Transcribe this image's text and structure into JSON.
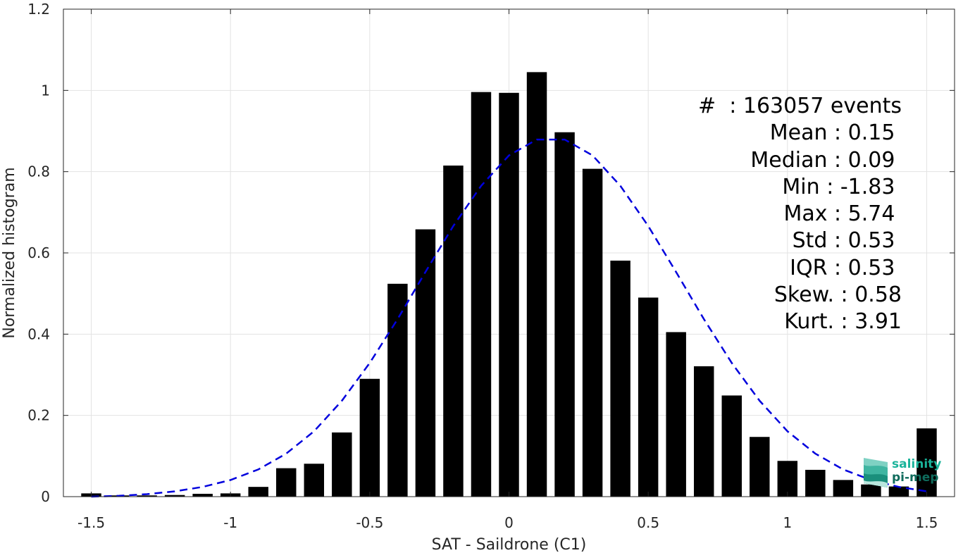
{
  "chart_data": {
    "type": "bar",
    "title": "",
    "xlabel": "SAT - Saildrone (C1)",
    "ylabel": "Normalized histogram",
    "xlim": [
      -1.6,
      1.6
    ],
    "ylim": [
      0,
      1.2
    ],
    "xticks": [
      "-1.5",
      "-1",
      "-0.5",
      "0",
      "0.5",
      "1",
      "1.5"
    ],
    "yticks": [
      "0",
      "0.2",
      "0.4",
      "0.6",
      "0.8",
      "1",
      "1.2"
    ],
    "grid": true,
    "x": [
      -1.5,
      -1.4,
      -1.3,
      -1.2,
      -1.1,
      -1.0,
      -0.9,
      -0.8,
      -0.7,
      -0.6,
      -0.5,
      -0.4,
      -0.3,
      -0.2,
      -0.1,
      0.0,
      0.1,
      0.2,
      0.3,
      0.4,
      0.5,
      0.6,
      0.7,
      0.8,
      0.9,
      1.0,
      1.1,
      1.2,
      1.3,
      1.4,
      1.5
    ],
    "values": [
      0.008,
      0.003,
      0.003,
      0.004,
      0.007,
      0.008,
      0.024,
      0.07,
      0.081,
      0.158,
      0.29,
      0.524,
      0.658,
      0.815,
      0.996,
      0.994,
      1.045,
      0.897,
      0.807,
      0.581,
      0.49,
      0.405,
      0.321,
      0.249,
      0.147,
      0.088,
      0.066,
      0.041,
      0.03,
      0.025,
      0.168
    ],
    "bar_color": "#000000",
    "fit": {
      "style": "dashed",
      "color": "#0000dd",
      "x": [
        -1.5,
        -1.4,
        -1.3,
        -1.2,
        -1.1,
        -1.0,
        -0.9,
        -0.8,
        -0.7,
        -0.6,
        -0.5,
        -0.4,
        -0.3,
        -0.2,
        -0.1,
        0.0,
        0.1,
        0.2,
        0.3,
        0.4,
        0.5,
        0.6,
        0.7,
        0.8,
        0.9,
        1.0,
        1.1,
        1.2,
        1.3,
        1.4,
        1.5
      ],
      "y": [
        0.0,
        0.002,
        0.006,
        0.013,
        0.024,
        0.041,
        0.067,
        0.106,
        0.161,
        0.236,
        0.329,
        0.437,
        0.553,
        0.666,
        0.765,
        0.84,
        0.879,
        0.879,
        0.84,
        0.765,
        0.666,
        0.553,
        0.437,
        0.329,
        0.236,
        0.161,
        0.106,
        0.067,
        0.041,
        0.024,
        0.013
      ]
    }
  },
  "stats": [
    "#  : 163057 events",
    "Mean : 0.15 ",
    "Median : 0.09 ",
    "Min : -1.83 ",
    "Max : 5.74 ",
    "Std : 0.53 ",
    "IQR : 0.53 ",
    "Skew. : 0.58",
    "Kurt. : 3.91"
  ],
  "logo": {
    "line1": "salinity",
    "line2": "pi-mep",
    "color1": "#1ab39a",
    "color2": "#0f6b5c"
  }
}
